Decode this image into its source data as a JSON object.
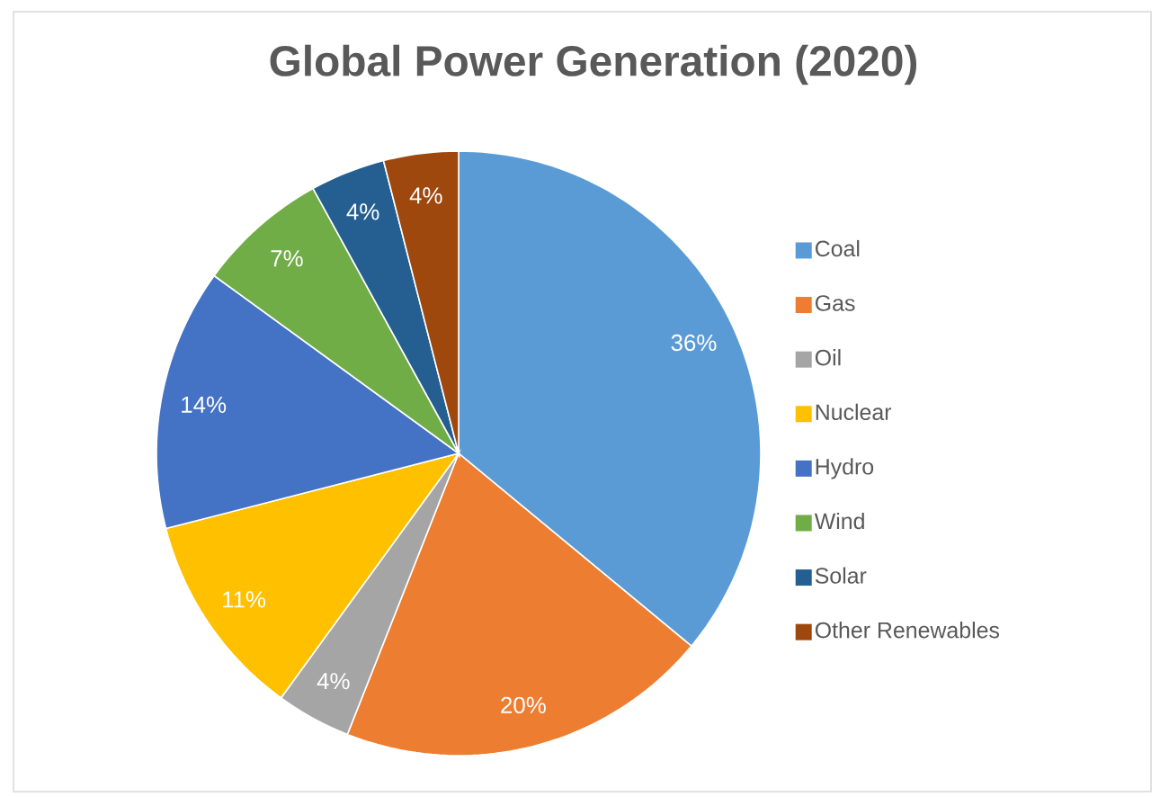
{
  "chart_data": {
    "type": "pie",
    "title": "Global Power Generation (2020)",
    "categories": [
      "Coal",
      "Gas",
      "Oil",
      "Nuclear",
      "Hydro",
      "Wind",
      "Solar",
      "Other Renewables"
    ],
    "values": [
      36,
      20,
      4,
      11,
      14,
      7,
      4,
      4
    ],
    "colors": [
      "#5b9bd5",
      "#ed7d31",
      "#a5a5a5",
      "#ffc000",
      "#4472c4",
      "#70ad47",
      "#255e91",
      "#9e480e"
    ],
    "value_labels": [
      "36%",
      "20%",
      "4%",
      "11%",
      "14%",
      "7%",
      "4%",
      "4%"
    ],
    "legend": "right"
  }
}
